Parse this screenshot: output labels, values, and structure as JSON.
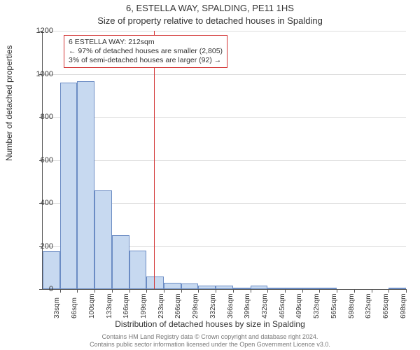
{
  "titles": {
    "line1": "6, ESTELLA WAY, SPALDING, PE11 1HS",
    "line2": "Size of property relative to detached houses in Spalding"
  },
  "chart": {
    "type": "histogram",
    "ylabel": "Number of detached properties",
    "xlabel": "Distribution of detached houses by size in Spalding",
    "ylim": [
      0,
      1200
    ],
    "ytick_step": 200,
    "yticks": [
      0,
      200,
      400,
      600,
      800,
      1000,
      1200
    ],
    "bar_color": "#c7d9f0",
    "bar_border": "#6b8cc4",
    "grid_color": "#dddddd",
    "axis_color": "#555555",
    "background_color": "#ffffff",
    "refline_color": "#d33333",
    "refline_x_sqm": 212,
    "x_start_sqm": 33,
    "x_step_sqm": 33,
    "bars": [
      {
        "label": "33sqm",
        "value": 175
      },
      {
        "label": "66sqm",
        "value": 960
      },
      {
        "label": "100sqm",
        "value": 965
      },
      {
        "label": "133sqm",
        "value": 460
      },
      {
        "label": "166sqm",
        "value": 250
      },
      {
        "label": "199sqm",
        "value": 180
      },
      {
        "label": "233sqm",
        "value": 60
      },
      {
        "label": "266sqm",
        "value": 30
      },
      {
        "label": "299sqm",
        "value": 25
      },
      {
        "label": "332sqm",
        "value": 15
      },
      {
        "label": "366sqm",
        "value": 15
      },
      {
        "label": "399sqm",
        "value": 5
      },
      {
        "label": "432sqm",
        "value": 15
      },
      {
        "label": "465sqm",
        "value": 2
      },
      {
        "label": "499sqm",
        "value": 2
      },
      {
        "label": "532sqm",
        "value": 2
      },
      {
        "label": "565sqm",
        "value": 2
      },
      {
        "label": "598sqm",
        "value": 0
      },
      {
        "label": "632sqm",
        "value": 0
      },
      {
        "label": "665sqm",
        "value": 0
      },
      {
        "label": "698sqm",
        "value": 2
      }
    ],
    "annotation": {
      "line1": "6 ESTELLA WAY: 212sqm",
      "line2": "← 97% of detached houses are smaller (2,805)",
      "line3": "3% of semi-detached houses are larger (92) →",
      "fontsize": 10.5
    }
  },
  "footer": {
    "line1": "Contains HM Land Registry data © Crown copyright and database right 2024.",
    "line2": "Contains public sector information licensed under the Open Government Licence v3.0."
  }
}
